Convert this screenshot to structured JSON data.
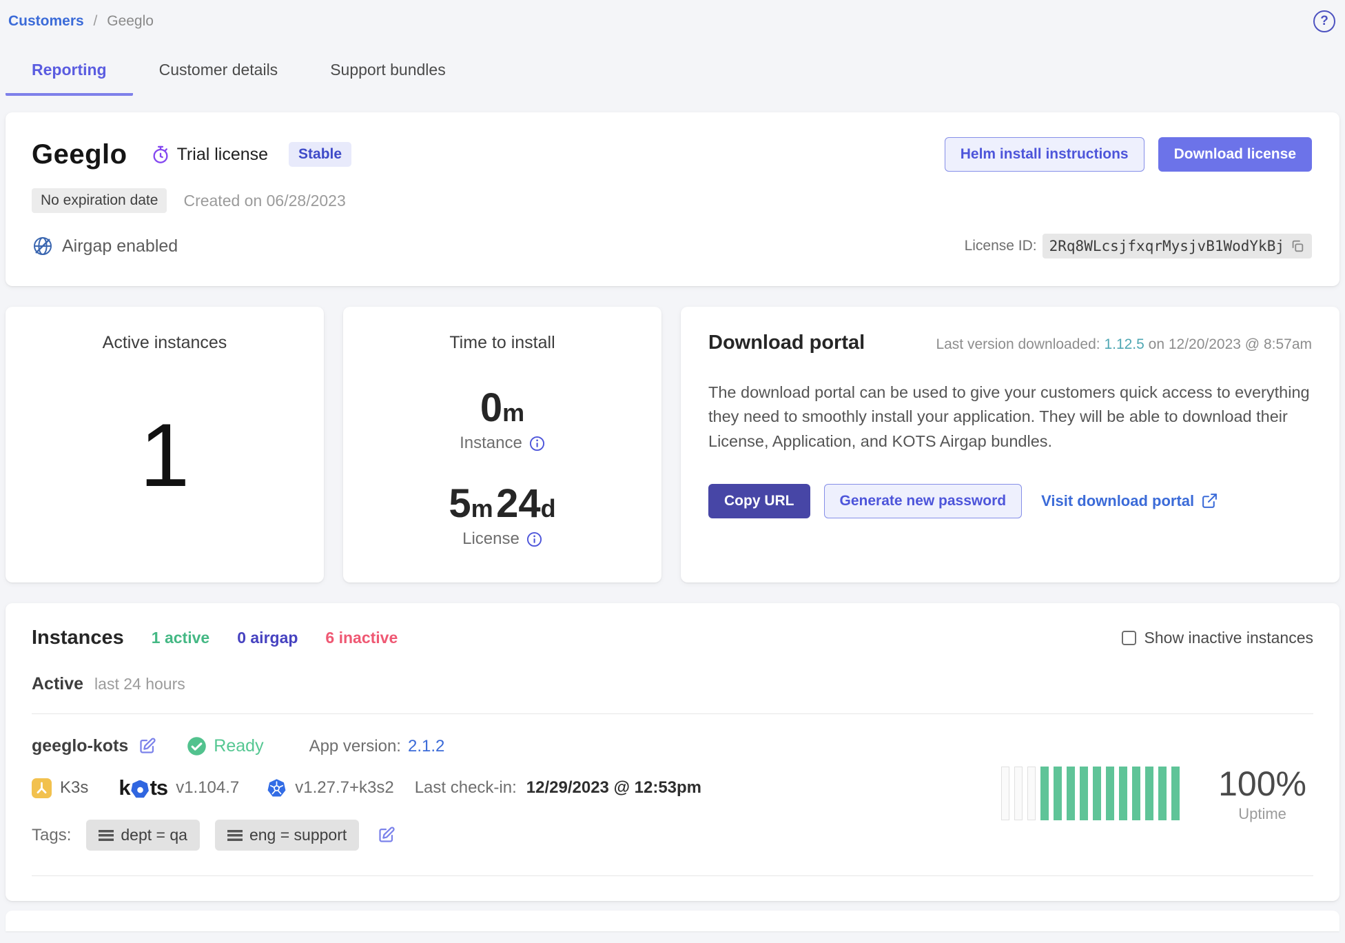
{
  "breadcrumb": {
    "parent": "Customers",
    "separator": "/",
    "current": "Geeglo"
  },
  "tabs": {
    "reporting": "Reporting",
    "customer_details": "Customer details",
    "support_bundles": "Support bundles"
  },
  "customer": {
    "name": "Geeglo",
    "license_type": "Trial license",
    "channel_badge": "Stable",
    "expiration_badge": "No expiration date",
    "created": "Created on 06/28/2023",
    "airgap_label": "Airgap enabled",
    "license_id_label": "License ID:",
    "license_id": "2Rq8WLcsjfxqrMysjvB1WodYkBj",
    "helm_button": "Helm install instructions",
    "download_button": "Download license"
  },
  "metrics": {
    "active_instances": {
      "title": "Active instances",
      "value": "1"
    },
    "time_to_install": {
      "title": "Time to install",
      "instance_value": "0",
      "instance_unit": "m",
      "instance_label": "Instance",
      "license_value_1": "5",
      "license_unit_1": "m",
      "license_value_2": "24",
      "license_unit_2": "d",
      "license_label": "License"
    }
  },
  "download_portal": {
    "title": "Download portal",
    "meta_prefix": "Last version downloaded: ",
    "meta_version": "1.12.5",
    "meta_suffix": " on 12/20/2023 @ 8:57am",
    "description": "The download portal can be used to give your customers quick access to everything they need to smoothly install your application. They will be able to download their License, Application, and KOTS Airgap bundles.",
    "copy_url_button": "Copy URL",
    "generate_password_button": "Generate new password",
    "visit_portal_link": "Visit download portal"
  },
  "instances": {
    "title": "Instances",
    "counts": {
      "active": "1 active",
      "airgap": "0 airgap",
      "inactive": "6 inactive"
    },
    "show_inactive_label": "Show inactive instances",
    "active_header": "Active",
    "active_range": "last 24 hours",
    "instance": {
      "name": "geeglo-kots",
      "status": "Ready",
      "app_version_label": "App version:",
      "app_version": "2.1.2",
      "distribution": "K3s",
      "kots_k": "k",
      "kots_ts": "ts",
      "kots_version": "v1.104.7",
      "k8s_version": "v1.27.7+k3s2",
      "last_checkin_label": "Last check-in:",
      "last_checkin": "12/29/2023 @ 12:53pm",
      "tags_label": "Tags:",
      "tags": {
        "tag1": "dept = qa",
        "tag2": "eng = support"
      },
      "uptime_value": "100%",
      "uptime_label": "Uptime",
      "uptime_bars_empty": 3,
      "uptime_bars_filled": 11
    }
  },
  "colors": {
    "accent_indigo": "#6c73e9",
    "dark_indigo": "#4746a6",
    "link_blue": "#3b6bd8",
    "teal_link": "#4fa7b3",
    "status_green": "#55c792",
    "bar_green": "#5fc498",
    "count_indigo": "#4642c0",
    "inactive_pink": "#ef5873",
    "trial_purple": "#8447f0",
    "kubernetes_blue": "#326ce5",
    "k3s_yellow": "#f2c14e"
  }
}
